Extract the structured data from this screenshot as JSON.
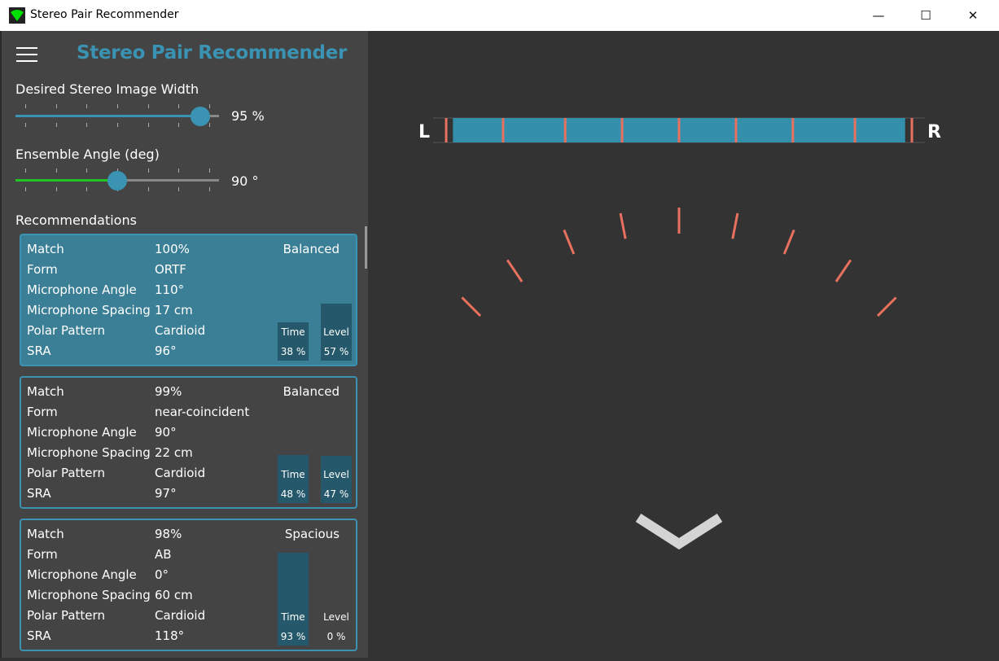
{
  "window": {
    "title": "Stereo Pair Recommender",
    "minimize": "—",
    "maximize": "☐",
    "close": "✕"
  },
  "header": {
    "title": "Stereo Pair Recommender"
  },
  "width_slider": {
    "label": "Desired Stereo Image Width",
    "value": 95,
    "min": 0,
    "max": 100,
    "display": "95 %"
  },
  "angle_slider": {
    "label": "Ensemble Angle (deg)",
    "value": 90,
    "min": 0,
    "max": 180,
    "display": "90 °"
  },
  "recommendations_label": "Recommendations",
  "row_labels": [
    "Match",
    "Form",
    "Microphone Angle",
    "Microphone Spacing",
    "Polar Pattern",
    "SRA"
  ],
  "time_label": "Time",
  "level_label": "Level",
  "recommendations": [
    {
      "values": [
        "100%",
        "ORTF",
        "110°",
        "17 cm",
        "Cardioid",
        "96°"
      ],
      "character": "Balanced",
      "time": 38,
      "level": 57,
      "time_text": "38 %",
      "level_text": "57 %",
      "selected": true
    },
    {
      "values": [
        "99%",
        "near-coincident",
        "90°",
        "22 cm",
        "Cardioid",
        "97°"
      ],
      "character": "Balanced",
      "time": 48,
      "level": 47,
      "time_text": "48 %",
      "level_text": "47 %",
      "selected": false
    },
    {
      "values": [
        "98%",
        "AB",
        "0°",
        "60 cm",
        "Cardioid",
        "118°"
      ],
      "character": "Spacious",
      "time": 93,
      "level": 0,
      "time_text": "93 %",
      "level_text": "0 %",
      "selected": false
    }
  ],
  "stage": {
    "left": "L",
    "right": "R",
    "sra_deg": 96,
    "ensemble_deg": 90,
    "source_positions_deg": [
      -45,
      -34,
      -22,
      -11,
      0,
      11,
      22,
      34,
      45
    ]
  },
  "colors": {
    "accent": "#3a93b3",
    "fan": "#00ff00",
    "inner": "#1eeb3a",
    "tick": "#e8705f",
    "bar": "#338fac"
  }
}
